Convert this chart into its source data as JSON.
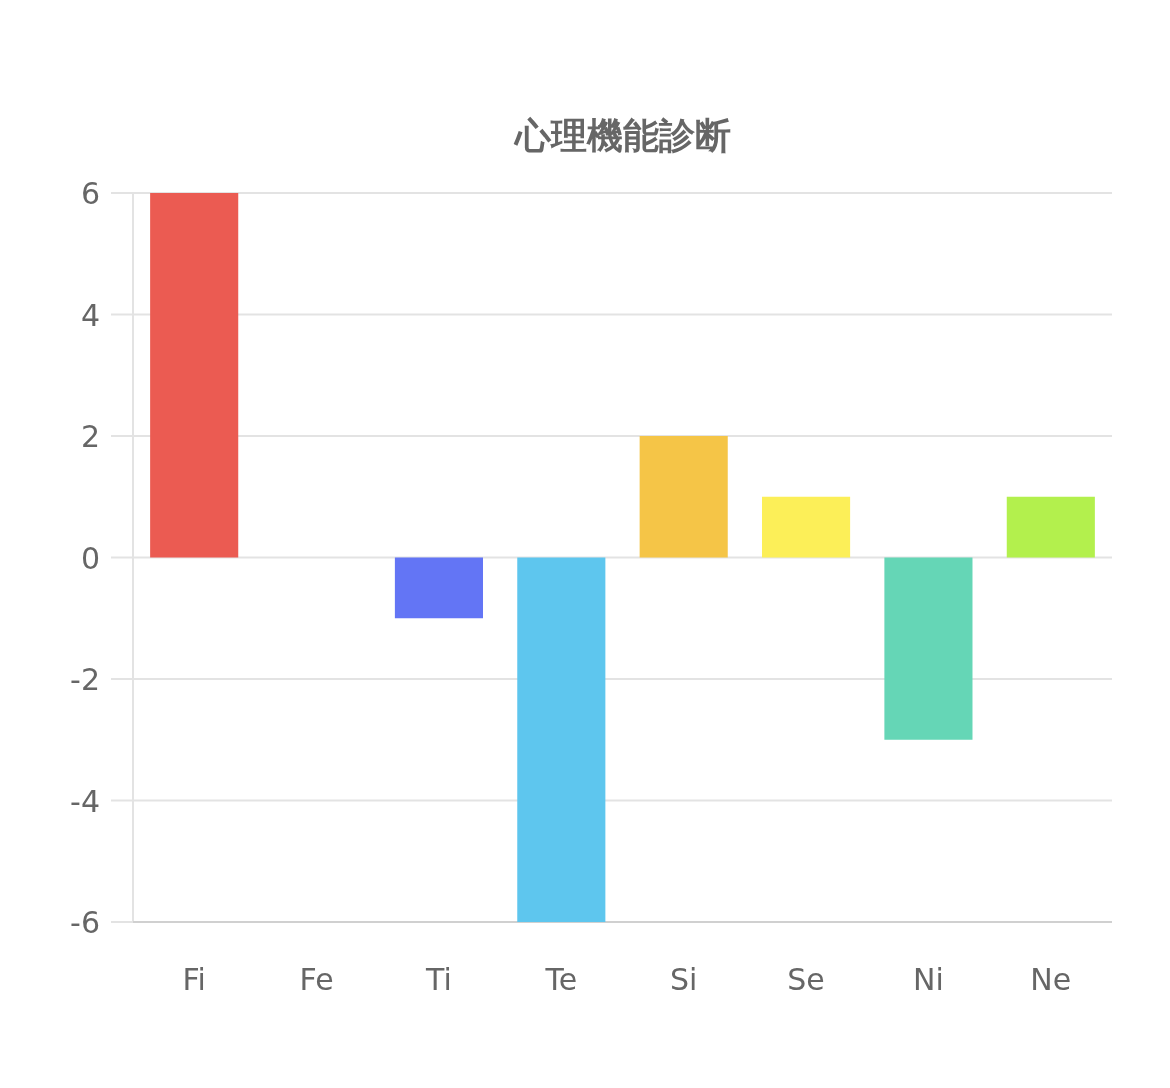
{
  "chart_data": {
    "type": "bar",
    "title": "心理機能診断",
    "categories": [
      "Fi",
      "Fe",
      "Ti",
      "Te",
      "Si",
      "Se",
      "Ni",
      "Ne"
    ],
    "values": [
      6,
      0,
      -1,
      -6,
      2,
      1,
      -3,
      1
    ],
    "colors": [
      "#eb5b52",
      null,
      "#6375f5",
      "#5ec6ee",
      "#f5c547",
      "#fcef58",
      "#65d6b6",
      "#b3f04d"
    ],
    "ylim": [
      -6,
      6
    ],
    "yticks": [
      -6,
      -4,
      -2,
      0,
      2,
      4,
      6
    ],
    "grid": "y"
  }
}
